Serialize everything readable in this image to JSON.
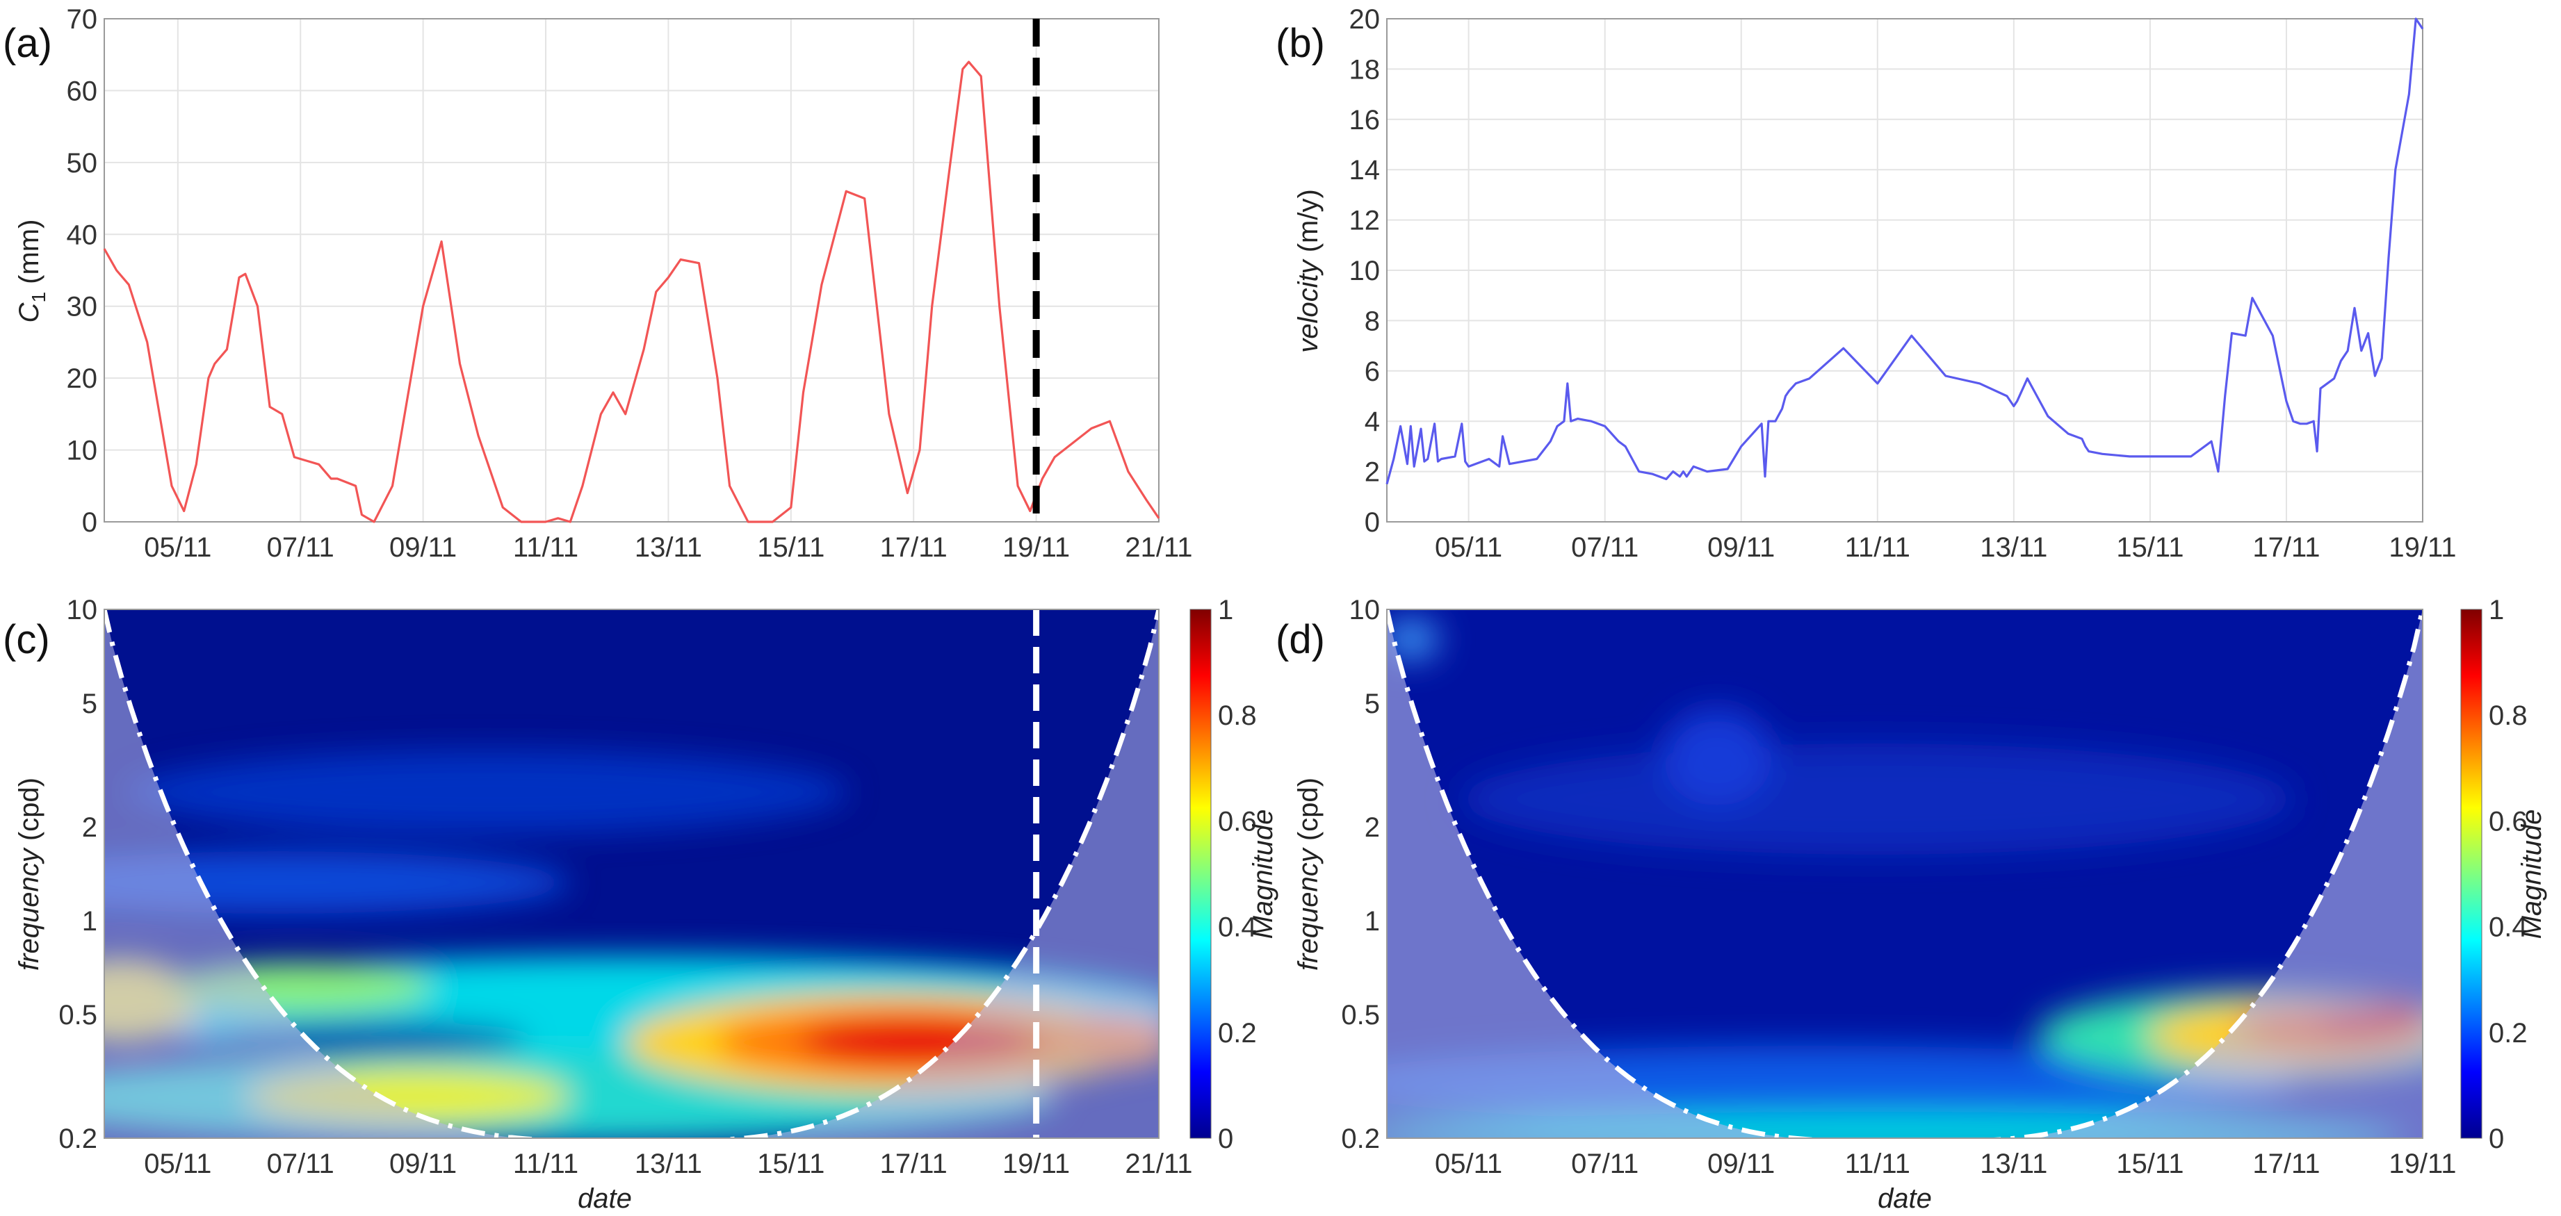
{
  "chart_data": [
    {
      "panel": "(a)",
      "type": "line",
      "ylabel": "C",
      "ylabel_sub": "1",
      "ylabel_unit": " (mm)",
      "xlabel": "",
      "ylim": [
        0,
        70
      ],
      "yticks": [
        0,
        10,
        20,
        30,
        40,
        50,
        60,
        70
      ],
      "xticks": [
        "05/11",
        "07/11",
        "09/11",
        "11/11",
        "13/11",
        "15/11",
        "17/11",
        "19/11",
        "21/11"
      ],
      "xlim_days": [
        3.8,
        21.0
      ],
      "grid": true,
      "color": "#f25555",
      "marker_line": {
        "x_day": 19.0,
        "style": "dashed",
        "color": "#000000"
      },
      "x": [
        3.8,
        4.0,
        4.2,
        4.5,
        4.7,
        4.9,
        5.1,
        5.3,
        5.5,
        5.6,
        5.8,
        6.0,
        6.1,
        6.3,
        6.5,
        6.7,
        6.9,
        7.1,
        7.3,
        7.5,
        7.6,
        7.9,
        8.0,
        8.2,
        8.5,
        8.8,
        9.0,
        9.1,
        9.3,
        9.6,
        9.9,
        10.3,
        10.6,
        11.0,
        11.2,
        11.4,
        11.6,
        11.9,
        12.1,
        12.3,
        12.6,
        12.8,
        13.0,
        13.2,
        13.5,
        13.8,
        14.0,
        14.3,
        14.7,
        15.0,
        15.2,
        15.5,
        15.9,
        16.2,
        16.4,
        16.6,
        16.9,
        17.1,
        17.3,
        17.6,
        17.8,
        17.9,
        18.1,
        18.4,
        18.7,
        18.9,
        19.1,
        19.3,
        19.6,
        19.9,
        20.2,
        20.5,
        20.8,
        21.0
      ],
      "y": [
        38,
        35,
        33,
        25,
        15,
        5,
        1.5,
        8,
        20,
        22,
        24,
        34,
        34.5,
        30,
        16,
        15,
        9,
        8.5,
        8,
        6,
        6,
        5,
        1,
        0,
        5,
        20,
        30,
        33,
        39,
        22,
        12,
        2,
        0,
        0,
        0.5,
        0,
        5,
        15,
        18,
        15,
        24,
        32,
        34,
        36.5,
        36,
        20,
        5,
        0,
        0,
        2,
        18,
        33,
        46,
        45,
        30,
        15,
        4,
        10,
        30,
        50,
        63,
        64,
        62,
        30,
        5,
        1.5,
        6,
        9,
        11,
        13,
        14,
        7,
        3,
        0.5
      ]
    },
    {
      "panel": "(b)",
      "type": "line",
      "ylabel": "velocity",
      "ylabel_unit": " (m/y)",
      "xlabel": "",
      "ylim": [
        0,
        20
      ],
      "yticks": [
        0,
        2,
        4,
        6,
        8,
        10,
        12,
        14,
        16,
        18,
        20
      ],
      "xticks": [
        "05/11",
        "07/11",
        "09/11",
        "11/11",
        "13/11",
        "15/11",
        "17/11",
        "19/11"
      ],
      "xlim_days": [
        3.8,
        19.0
      ],
      "grid": true,
      "color": "#5a5aee",
      "x": [
        3.8,
        3.9,
        4.0,
        4.1,
        4.15,
        4.2,
        4.3,
        4.35,
        4.4,
        4.5,
        4.55,
        4.6,
        4.8,
        4.9,
        4.95,
        5.0,
        5.3,
        5.45,
        5.5,
        5.6,
        6.0,
        6.2,
        6.3,
        6.4,
        6.45,
        6.5,
        6.6,
        6.8,
        7.0,
        7.2,
        7.3,
        7.5,
        7.7,
        7.9,
        8.0,
        8.1,
        8.15,
        8.2,
        8.3,
        8.5,
        8.8,
        9.0,
        9.3,
        9.35,
        9.4,
        9.5,
        9.6,
        9.65,
        9.7,
        9.8,
        10.0,
        10.5,
        11.0,
        11.5,
        12.0,
        12.5,
        12.9,
        13.0,
        13.05,
        13.2,
        13.5,
        13.8,
        14.0,
        14.05,
        14.1,
        14.3,
        14.7,
        15.2,
        15.6,
        15.9,
        16.0,
        16.1,
        16.2,
        16.4,
        16.5,
        16.8,
        17.0,
        17.1,
        17.2,
        17.3,
        17.4,
        17.45,
        17.5,
        17.7,
        17.8,
        17.9,
        18.0,
        18.1,
        18.2,
        18.3,
        18.4,
        18.5,
        18.6,
        18.7,
        18.8,
        18.85,
        18.9,
        19.0
      ],
      "y": [
        1.5,
        2.5,
        3.8,
        2.3,
        3.8,
        2.2,
        3.7,
        2.4,
        2.5,
        3.9,
        2.4,
        2.5,
        2.6,
        3.9,
        2.4,
        2.2,
        2.5,
        2.2,
        3.4,
        2.3,
        2.5,
        3.2,
        3.8,
        4.0,
        5.5,
        4.0,
        4.1,
        4.0,
        3.8,
        3.2,
        3.0,
        2.0,
        1.9,
        1.7,
        2.0,
        1.8,
        2.0,
        1.8,
        2.2,
        2.0,
        2.1,
        3.0,
        3.9,
        1.8,
        4.0,
        4.0,
        4.5,
        5.0,
        5.2,
        5.5,
        5.7,
        6.9,
        5.5,
        7.4,
        5.8,
        5.5,
        5.0,
        4.6,
        4.8,
        5.7,
        4.2,
        3.5,
        3.3,
        3.0,
        2.8,
        2.7,
        2.6,
        2.6,
        2.6,
        3.2,
        2.0,
        5.0,
        7.5,
        7.4,
        8.9,
        7.4,
        4.8,
        4.0,
        3.9,
        3.9,
        4.0,
        2.8,
        5.3,
        5.7,
        6.4,
        6.8,
        8.5,
        6.8,
        7.5,
        5.8,
        6.5,
        10.5,
        14.0,
        15.5,
        17.0,
        18.5,
        20.0,
        19.6
      ]
    },
    {
      "panel": "(c)",
      "type": "heatmap",
      "title": "",
      "xlabel": "date",
      "ylabel": "frequency",
      "ylabel_unit": " (cpd)",
      "yscale": "log",
      "ylim": [
        0.2,
        10
      ],
      "yticks": [
        10,
        5,
        2,
        1,
        0.5,
        0.2
      ],
      "xticks": [
        "05/11",
        "07/11",
        "09/11",
        "11/11",
        "13/11",
        "15/11",
        "17/11",
        "19/11",
        "21/11"
      ],
      "xlim_days": [
        3.8,
        21.0
      ],
      "colorbar": {
        "label": "Magnitude",
        "ticks": [
          1,
          0.8,
          0.6,
          0.4,
          0.2,
          0
        ]
      },
      "marker_line": {
        "x_day": 19.0,
        "style": "dashed",
        "color": "#ffffff"
      },
      "features": [
        {
          "x_day": 16.5,
          "frequency_cpd": 0.5,
          "magnitude": 1.0
        },
        {
          "x_day": 9.5,
          "frequency_cpd": 0.3,
          "magnitude": 0.6
        },
        {
          "x_day": 6.0,
          "frequency_cpd": 0.55,
          "magnitude": 0.5
        },
        {
          "x_day": 4.2,
          "frequency_cpd": 0.55,
          "magnitude": 0.6
        },
        {
          "x_day": 12.5,
          "frequency_cpd": 0.55,
          "magnitude": 0.35
        },
        {
          "x_day": 20.3,
          "frequency_cpd": 0.5,
          "magnitude": 0.6
        }
      ]
    },
    {
      "panel": "(d)",
      "type": "heatmap",
      "title": "",
      "xlabel": "date",
      "ylabel": "frequency",
      "ylabel_unit": " (cpd)",
      "yscale": "log",
      "ylim": [
        0.2,
        10
      ],
      "yticks": [
        10,
        5,
        2,
        1,
        0.5,
        0.2
      ],
      "xticks": [
        "05/11",
        "07/11",
        "09/11",
        "11/11",
        "13/11",
        "15/11",
        "17/11",
        "19/11"
      ],
      "xlim_days": [
        3.8,
        19.0
      ],
      "colorbar": {
        "label": "Magnitude",
        "ticks": [
          1,
          0.8,
          0.6,
          0.4,
          0.2,
          0
        ]
      },
      "features": [
        {
          "x_day": 17.7,
          "frequency_cpd": 0.55,
          "magnitude": 0.85
        },
        {
          "x_day": 17.0,
          "frequency_cpd": 0.5,
          "magnitude": 0.6
        },
        {
          "x_day": 10.0,
          "frequency_cpd": 0.35,
          "magnitude": 0.2
        }
      ]
    }
  ]
}
